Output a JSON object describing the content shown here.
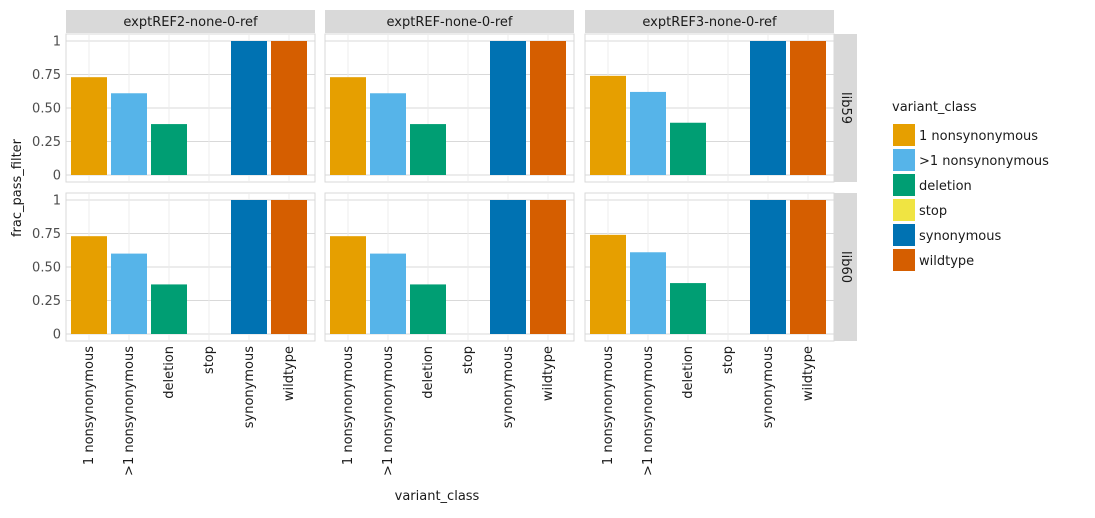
{
  "chart_data": {
    "type": "bar",
    "x_label": "variant_class",
    "y_label": "frac_pass_filter",
    "categories": [
      "1 nonsynonymous",
      ">1 nonsynonymous",
      "deletion",
      "stop",
      "synonymous",
      "wildtype"
    ],
    "y_ticks": [
      0,
      0.25,
      0.5,
      0.75,
      1
    ],
    "y_tick_labels": [
      "0",
      "0.25",
      "0.50",
      "0.75",
      "1"
    ],
    "ylim": [
      0,
      1
    ],
    "grid": true,
    "legend": {
      "title": "variant_class",
      "position": "right",
      "items": [
        {
          "label": "1 nonsynonymous",
          "color": "#E69F00"
        },
        {
          "label": ">1 nonsynonymous",
          "color": "#56B4E9"
        },
        {
          "label": "deletion",
          "color": "#009E73"
        },
        {
          "label": "stop",
          "color": "#F0E442"
        },
        {
          "label": "synonymous",
          "color": "#0072B2"
        },
        {
          "label": "wildtype",
          "color": "#D55E00"
        }
      ]
    },
    "columns": [
      "exptREF2-none-0-ref",
      "exptREF-none-0-ref",
      "exptREF3-none-0-ref"
    ],
    "rows": [
      "lib59",
      "lib60"
    ],
    "panels": [
      {
        "col": 0,
        "row": 0,
        "values": [
          0.73,
          0.61,
          0.38,
          0,
          1,
          1
        ]
      },
      {
        "col": 1,
        "row": 0,
        "values": [
          0.73,
          0.61,
          0.38,
          0,
          1,
          1
        ]
      },
      {
        "col": 2,
        "row": 0,
        "values": [
          0.74,
          0.62,
          0.39,
          0,
          1,
          1
        ]
      },
      {
        "col": 0,
        "row": 1,
        "values": [
          0.73,
          0.6,
          0.37,
          0,
          1,
          1
        ]
      },
      {
        "col": 1,
        "row": 1,
        "values": [
          0.73,
          0.6,
          0.37,
          0,
          1,
          1
        ]
      },
      {
        "col": 2,
        "row": 1,
        "values": [
          0.74,
          0.61,
          0.38,
          0,
          1,
          1
        ]
      }
    ]
  }
}
